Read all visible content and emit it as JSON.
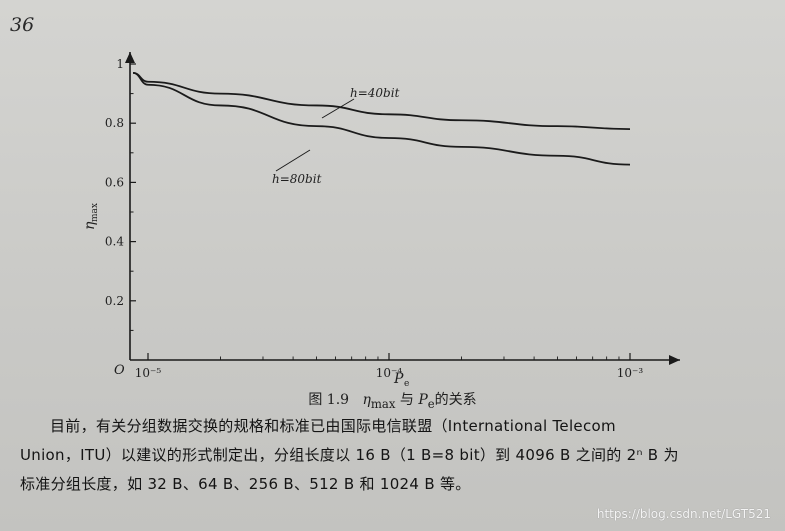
{
  "page_number": "36",
  "chart_data": {
    "type": "line",
    "title": "",
    "xlabel": "P",
    "xlabel_sub": "e",
    "ylabel": "η",
    "ylabel_sub": "max",
    "origin_label": "O",
    "x_scale": "log",
    "xlim": [
      1e-05,
      0.001
    ],
    "ylim": [
      0,
      1.0
    ],
    "y_ticks": [
      {
        "value": 0.2,
        "label": "0.2"
      },
      {
        "value": 0.4,
        "label": "0.4"
      },
      {
        "value": 0.6,
        "label": "0.6"
      },
      {
        "value": 0.8,
        "label": "0.8"
      },
      {
        "value": 1.0,
        "label": "1"
      }
    ],
    "x_ticks": [
      {
        "value": 1e-05,
        "label": "10⁻⁵"
      },
      {
        "value": 0.0001,
        "label": "10⁻⁴"
      },
      {
        "value": 0.001,
        "label": "10⁻³"
      }
    ],
    "grid": false,
    "series": [
      {
        "name": "h=40bit",
        "x": [
          1e-05,
          2e-05,
          5e-05,
          0.0001,
          0.0002,
          0.0005,
          0.001
        ],
        "y": [
          0.94,
          0.9,
          0.86,
          0.83,
          0.81,
          0.79,
          0.78
        ]
      },
      {
        "name": "h=80bit",
        "x": [
          1e-05,
          2e-05,
          5e-05,
          0.0001,
          0.0002,
          0.0005,
          0.001
        ],
        "y": [
          0.93,
          0.86,
          0.79,
          0.75,
          0.72,
          0.69,
          0.66
        ]
      }
    ]
  },
  "caption": {
    "prefix": "图 1.9",
    "symbol": "η",
    "symbol_sub": "max",
    "middle": "与",
    "var": "P",
    "var_sub": "e",
    "suffix": "的关系"
  },
  "body": {
    "line1": "目前，有关分组数据交换的规格和标准已由国际电信联盟（International Telecom",
    "line2": "Union，ITU）以建议的形式制定出，分组长度以 16 B（1 B=8 bit）到 4096 B 之间的 2ⁿ B 为",
    "line3": "标准分组长度，如 32 B、64 B、256 B、512 B 和 1024 B 等。"
  },
  "watermark": "https://blog.csdn.net/LGT521"
}
